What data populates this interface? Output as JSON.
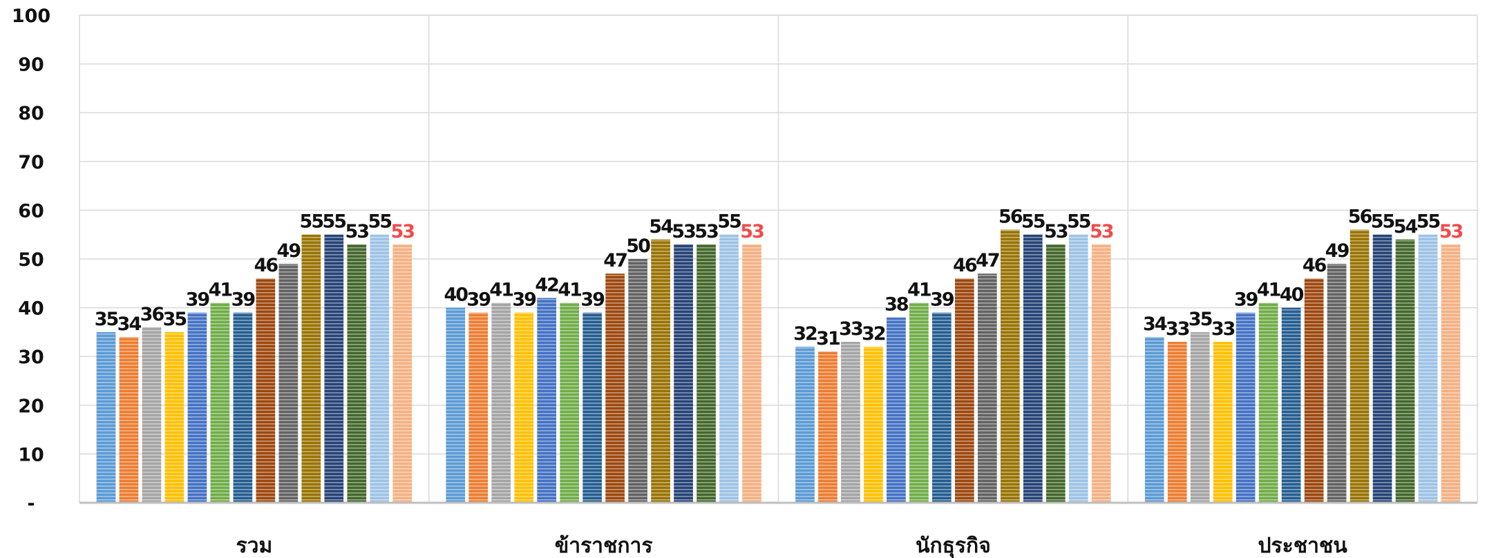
{
  "chart_data": {
    "type": "bar",
    "categories": [
      "รวม",
      "ข้าราชการ",
      "นักธุรกิจ",
      "ประชาชน"
    ],
    "y_ticks": [
      "-",
      "10",
      "20",
      "30",
      "40",
      "50",
      "60",
      "70",
      "80",
      "90",
      "100"
    ],
    "ylim": [
      0,
      100
    ],
    "grid": true,
    "legend": "none",
    "series_colors": [
      "#5b9bd5",
      "#ed7d31",
      "#a5a5a5",
      "#ffc000",
      "#4472c4",
      "#70ad47",
      "#255e91",
      "#9e480e",
      "#636363",
      "#997300",
      "#264478",
      "#43682b",
      "#9dc3e6",
      "#f4b183"
    ],
    "highlight_label_color": "#f24b4b",
    "highlight_series_index": 13,
    "series": [
      {
        "values": [
          35,
          40,
          32,
          34
        ]
      },
      {
        "values": [
          34,
          39,
          31,
          33
        ]
      },
      {
        "values": [
          36,
          41,
          33,
          35
        ]
      },
      {
        "values": [
          35,
          39,
          32,
          33
        ]
      },
      {
        "values": [
          39,
          42,
          38,
          39
        ]
      },
      {
        "values": [
          41,
          41,
          41,
          41
        ]
      },
      {
        "values": [
          39,
          39,
          39,
          40
        ]
      },
      {
        "values": [
          46,
          47,
          46,
          46
        ]
      },
      {
        "values": [
          49,
          50,
          47,
          49
        ]
      },
      {
        "values": [
          55,
          54,
          56,
          56
        ]
      },
      {
        "values": [
          55,
          53,
          55,
          55
        ]
      },
      {
        "values": [
          53,
          53,
          53,
          54
        ]
      },
      {
        "values": [
          55,
          55,
          55,
          55
        ]
      },
      {
        "values": [
          53,
          53,
          53,
          53
        ]
      }
    ]
  }
}
